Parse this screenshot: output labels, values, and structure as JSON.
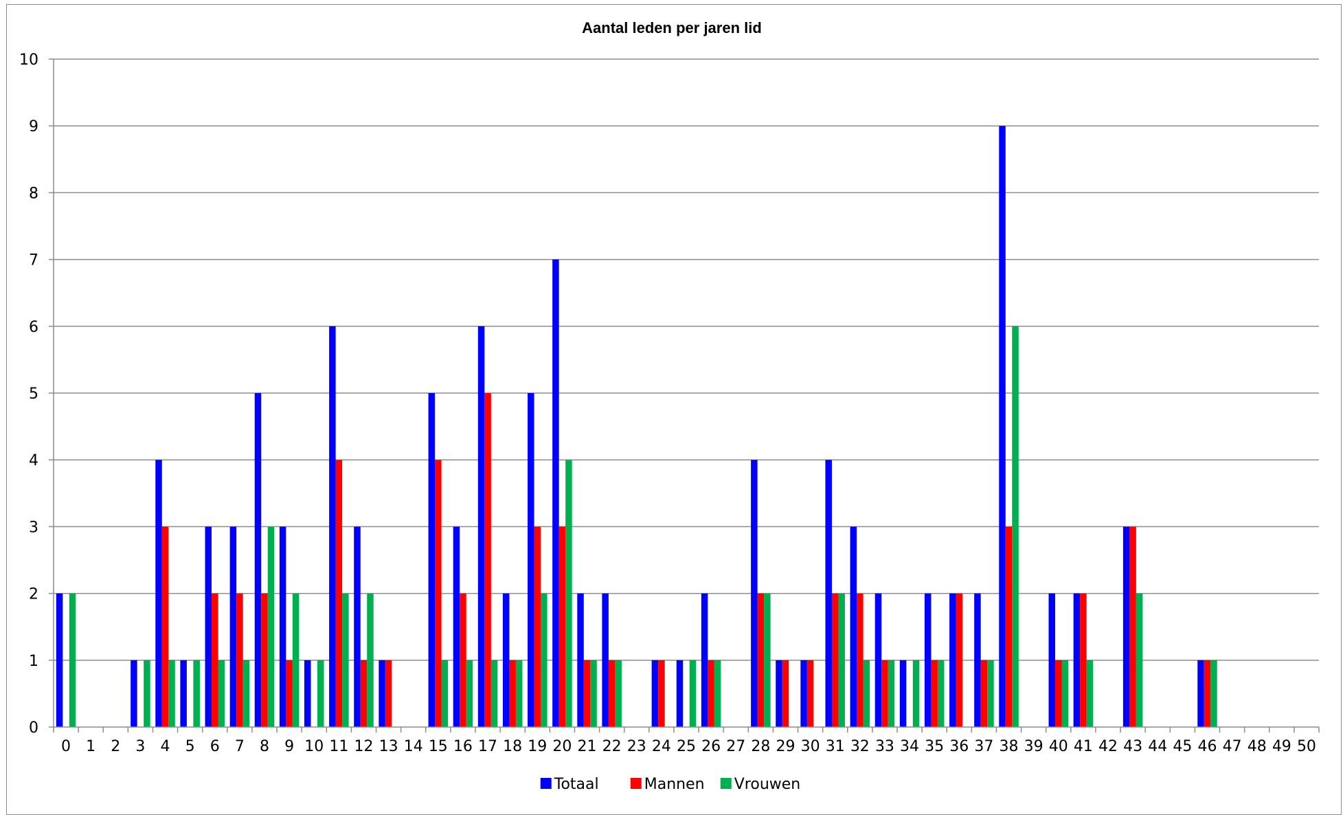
{
  "chart_data": {
    "type": "bar",
    "title": "Aantal leden per jaren lid",
    "xlabel": "",
    "ylabel": "",
    "ylim": [
      0,
      10
    ],
    "yticks": [
      0,
      1,
      2,
      3,
      4,
      5,
      6,
      7,
      8,
      9,
      10
    ],
    "grid": true,
    "legend_position": "bottom",
    "categories": [
      "0",
      "1",
      "2",
      "3",
      "4",
      "5",
      "6",
      "7",
      "8",
      "9",
      "10",
      "11",
      "12",
      "13",
      "14",
      "15",
      "16",
      "17",
      "18",
      "19",
      "20",
      "21",
      "22",
      "23",
      "24",
      "25",
      "26",
      "27",
      "28",
      "29",
      "30",
      "31",
      "32",
      "33",
      "34",
      "35",
      "36",
      "37",
      "38",
      "39",
      "40",
      "41",
      "42",
      "43",
      "44",
      "45",
      "46",
      "47",
      "48",
      "49",
      "50"
    ],
    "series": [
      {
        "name": "Totaal",
        "color": "#0000ff",
        "values": [
          2,
          0,
          0,
          1,
          4,
          1,
          3,
          3,
          5,
          3,
          1,
          6,
          3,
          1,
          0,
          5,
          3,
          6,
          2,
          5,
          7,
          2,
          2,
          0,
          1,
          1,
          2,
          0,
          4,
          1,
          1,
          4,
          3,
          2,
          1,
          2,
          2,
          2,
          9,
          0,
          2,
          2,
          0,
          3,
          0,
          0,
          1,
          0,
          0,
          0,
          0
        ]
      },
      {
        "name": "Mannen",
        "color": "#ff0000",
        "values": [
          0,
          0,
          0,
          0,
          3,
          0,
          2,
          2,
          2,
          1,
          0,
          4,
          1,
          1,
          0,
          4,
          2,
          5,
          1,
          3,
          3,
          1,
          1,
          0,
          1,
          0,
          1,
          0,
          2,
          1,
          1,
          2,
          2,
          1,
          0,
          1,
          2,
          1,
          3,
          0,
          1,
          2,
          0,
          3,
          0,
          0,
          1,
          0,
          0,
          0,
          0
        ]
      },
      {
        "name": "Vrouwen",
        "color": "#00b050",
        "values": [
          2,
          0,
          0,
          1,
          1,
          1,
          1,
          1,
          3,
          2,
          1,
          2,
          2,
          0,
          0,
          1,
          1,
          1,
          1,
          2,
          4,
          1,
          1,
          0,
          0,
          1,
          1,
          0,
          2,
          0,
          0,
          2,
          1,
          1,
          1,
          1,
          0,
          1,
          6,
          0,
          1,
          1,
          0,
          2,
          0,
          0,
          1,
          0,
          0,
          0,
          0
        ]
      }
    ]
  }
}
